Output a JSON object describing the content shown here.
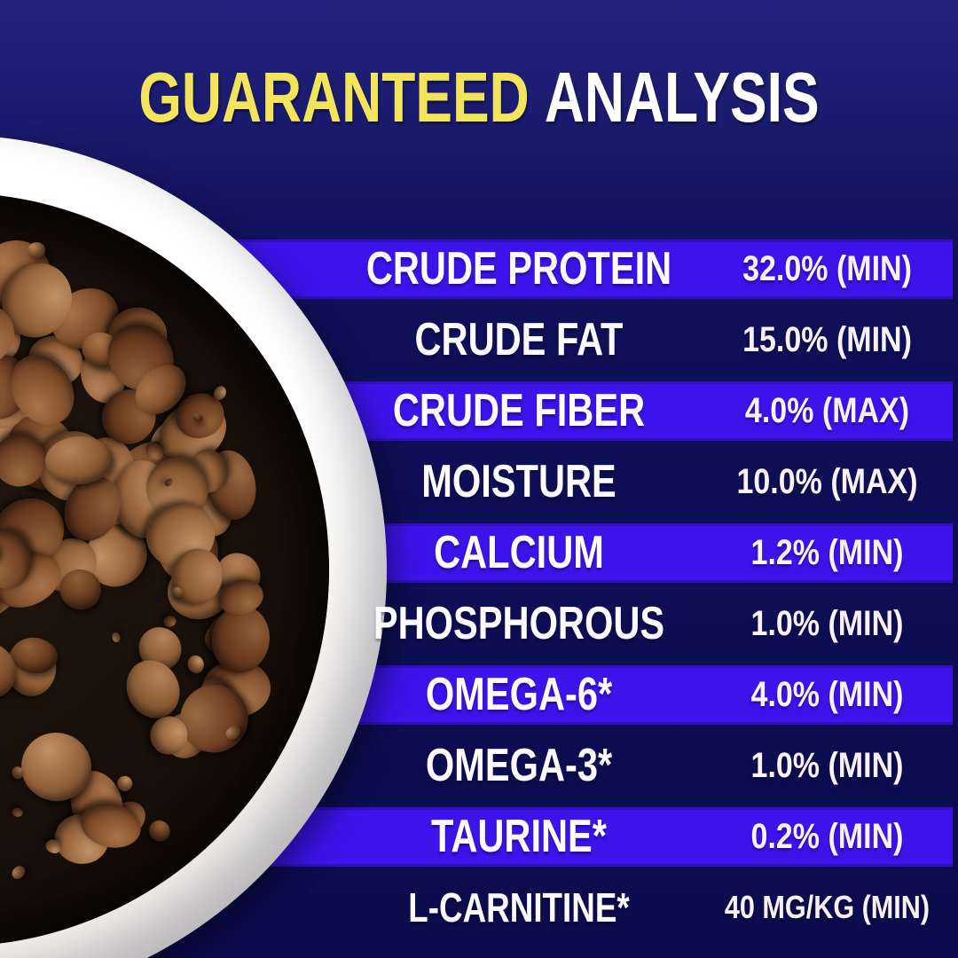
{
  "title": {
    "highlight": "GUARANTEED",
    "rest": "ANALYSIS"
  },
  "colors": {
    "background_top": "#22227c",
    "background_bottom": "#0b0b4d",
    "stripe": "#3c13ea",
    "title_yellow": "#f2e55c",
    "row_text": "#ffffff"
  },
  "photo": {
    "name": "bowl-of-dog-kibble",
    "bowl_color": "#f3f1ec",
    "kibble_palette": [
      [
        "#b4825a",
        "#8a5a33",
        "#54301a"
      ],
      [
        "#a8744a",
        "#7c4a28",
        "#4a2815"
      ],
      [
        "#9a6a40",
        "#6e3f24",
        "#3e2212"
      ],
      [
        "#c09066",
        "#926038",
        "#5a3520"
      ],
      [
        "#8e5e36",
        "#64381e",
        "#351c0e"
      ]
    ]
  },
  "table": {
    "rows": [
      {
        "label": "CRUDE PROTEIN",
        "value": "32.0% (MIN)",
        "stripe": true
      },
      {
        "label": "CRUDE FAT",
        "value": "15.0% (MIN)",
        "stripe": false
      },
      {
        "label": "CRUDE FIBER",
        "value": "4.0% (MAX)",
        "stripe": true
      },
      {
        "label": "MOISTURE",
        "value": "10.0% (MAX)",
        "stripe": false
      },
      {
        "label": "CALCIUM",
        "value": "1.2% (MIN)",
        "stripe": true
      },
      {
        "label": "PHOSPHOROUS",
        "value": "1.0% (MIN)",
        "stripe": false
      },
      {
        "label": "OMEGA-6*",
        "value": "4.0% (MIN)",
        "stripe": true
      },
      {
        "label": "OMEGA-3*",
        "value": "1.0% (MIN)",
        "stripe": false
      },
      {
        "label": "TAURINE*",
        "value": "0.2% (MIN)",
        "stripe": true
      },
      {
        "label": "L-CARNITINE*",
        "value": "40 MG/KG (MIN)",
        "stripe": false
      }
    ]
  }
}
